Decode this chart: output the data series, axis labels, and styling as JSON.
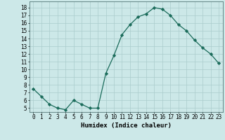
{
  "x": [
    0,
    1,
    2,
    3,
    4,
    5,
    6,
    7,
    8,
    9,
    10,
    11,
    12,
    13,
    14,
    15,
    16,
    17,
    18,
    19,
    20,
    21,
    22,
    23
  ],
  "y": [
    7.5,
    6.5,
    5.5,
    5.0,
    4.8,
    6.0,
    5.5,
    5.0,
    5.0,
    9.5,
    11.8,
    14.5,
    15.8,
    16.8,
    17.2,
    18.0,
    17.8,
    17.0,
    15.8,
    15.0,
    13.8,
    12.8,
    12.0,
    10.8
  ],
  "line_color": "#1a6b5a",
  "marker": "D",
  "marker_size": 2.2,
  "bg_color": "#cce8e8",
  "grid_color": "#aacccc",
  "xlabel": "Humidex (Indice chaleur)",
  "ylim": [
    4.5,
    18.8
  ],
  "xlim": [
    -0.5,
    23.5
  ],
  "yticks": [
    5,
    6,
    7,
    8,
    9,
    10,
    11,
    12,
    13,
    14,
    15,
    16,
    17,
    18
  ],
  "xticks": [
    0,
    1,
    2,
    3,
    4,
    5,
    6,
    7,
    8,
    9,
    10,
    11,
    12,
    13,
    14,
    15,
    16,
    17,
    18,
    19,
    20,
    21,
    22,
    23
  ],
  "tick_font_size": 5.5,
  "label_font_size": 6.5
}
